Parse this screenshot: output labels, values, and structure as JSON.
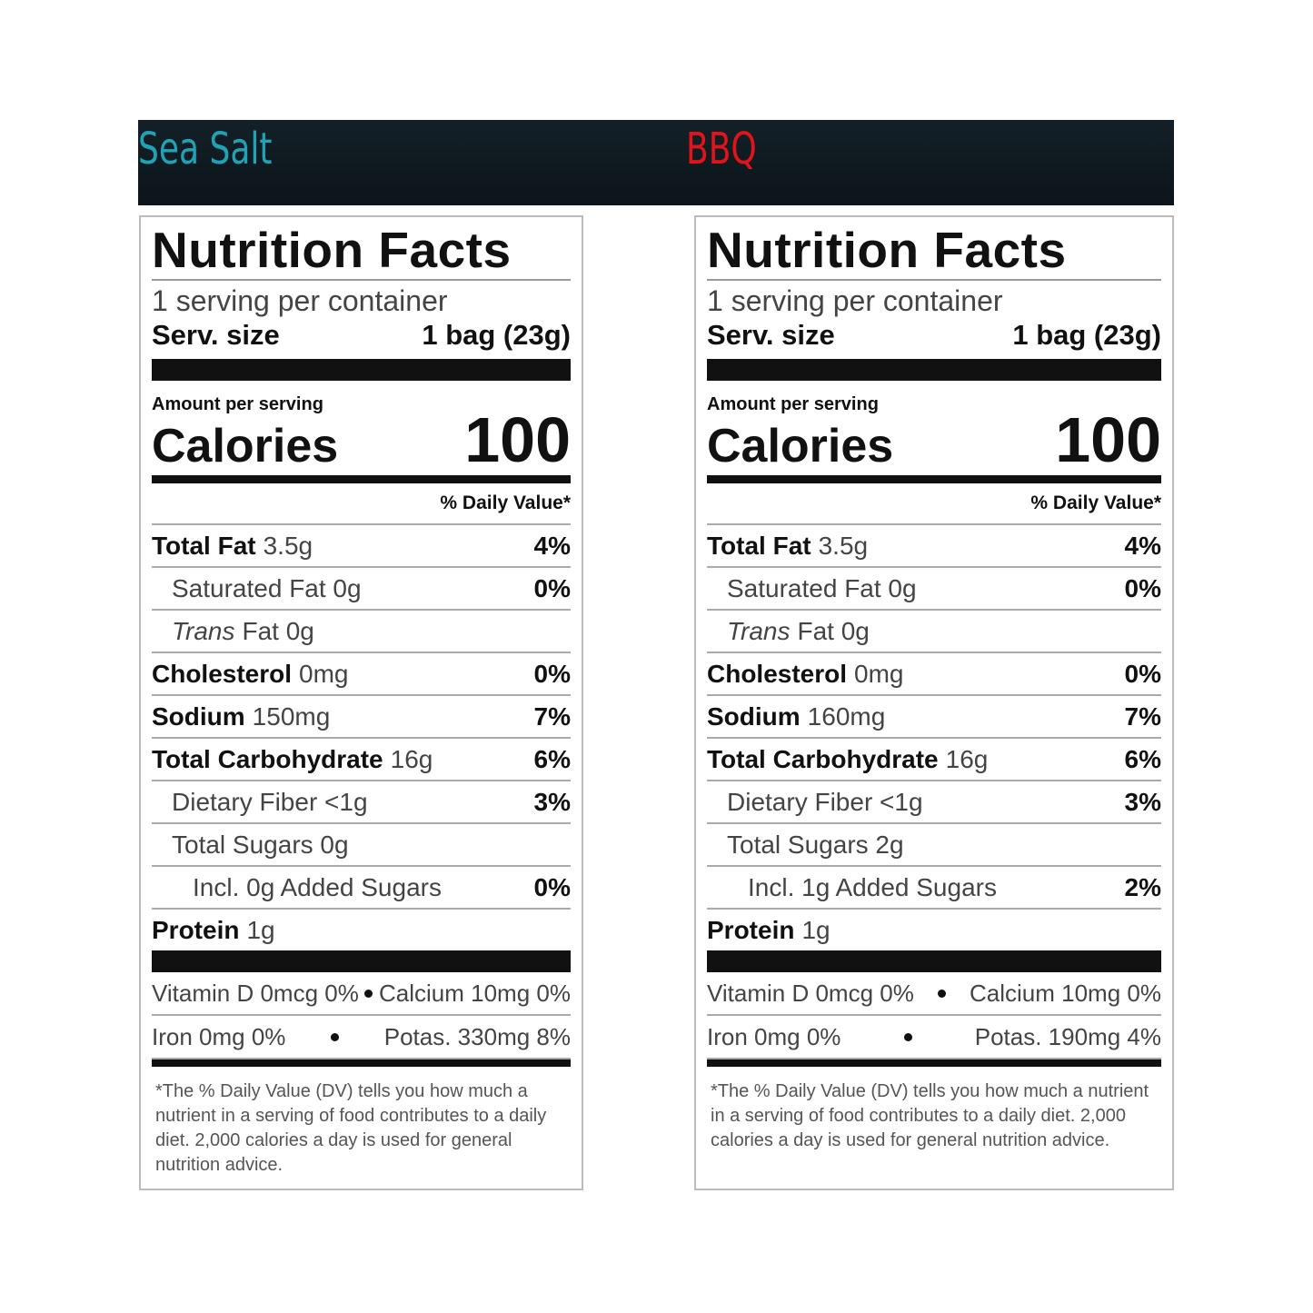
{
  "banner": {
    "left": "Sea Salt",
    "right": "BBQ"
  },
  "labels": [
    {
      "title": "Nutrition Facts",
      "servings": "1 serving per container",
      "serv_size_label": "Serv. size",
      "serv_size": "1 bag (23g)",
      "amount_label": "Amount per serving",
      "calories_label": "Calories",
      "calories": "100",
      "dv_header": "% Daily Value*",
      "rows": [
        {
          "name": "Total Fat",
          "amount": "3.5g",
          "dv": "4%"
        },
        {
          "name": "Saturated Fat 0g",
          "dv": "0%"
        },
        {
          "name": "Trans",
          "amount": "Fat 0g"
        },
        {
          "name": "Cholesterol",
          "amount": "0mg",
          "dv": "0%"
        },
        {
          "name": "Sodium",
          "amount": "150mg",
          "dv": "7%"
        },
        {
          "name": "Total Carbohydrate",
          "amount": "16g",
          "dv": "6%"
        },
        {
          "name": "Dietary Fiber <1g",
          "dv": "3%"
        },
        {
          "name": "Total Sugars 0g"
        },
        {
          "name": "Incl. 0g Added Sugars",
          "dv": "0%"
        },
        {
          "name": "Protein",
          "amount": "1g"
        }
      ],
      "vitamins": [
        [
          "Vitamin D 0mcg 0%",
          "Calcium 10mg 0%"
        ],
        [
          "Iron 0mg 0%",
          "Potas. 330mg 8%"
        ]
      ],
      "footnote": "*The % Daily Value (DV) tells you how much a nutrient in a serving of food contributes to a daily diet. 2,000 calories a day is used for general nutrition advice."
    },
    {
      "title": "Nutrition Facts",
      "servings": "1 serving per container",
      "serv_size_label": "Serv. size",
      "serv_size": "1 bag (23g)",
      "amount_label": "Amount per serving",
      "calories_label": "Calories",
      "calories": "100",
      "dv_header": "% Daily Value*",
      "rows": [
        {
          "name": "Total Fat",
          "amount": "3.5g",
          "dv": "4%"
        },
        {
          "name": "Saturated Fat 0g",
          "dv": "0%"
        },
        {
          "name": "Trans",
          "amount": "Fat 0g"
        },
        {
          "name": "Cholesterol",
          "amount": "0mg",
          "dv": "0%"
        },
        {
          "name": "Sodium",
          "amount": "160mg",
          "dv": "7%"
        },
        {
          "name": "Total Carbohydrate",
          "amount": "16g",
          "dv": "6%"
        },
        {
          "name": "Dietary Fiber <1g",
          "dv": "3%"
        },
        {
          "name": "Total Sugars 2g"
        },
        {
          "name": "Incl. 1g Added Sugars",
          "dv": "2%"
        },
        {
          "name": "Protein",
          "amount": "1g"
        }
      ],
      "vitamins": [
        [
          "Vitamin D 0mcg 0%",
          "Calcium 10mg 0%"
        ],
        [
          "Iron 0mg 0%",
          "Potas. 190mg 4%"
        ]
      ],
      "footnote": "*The % Daily Value (DV) tells you how much a nutrient in a serving of food contributes to a daily diet. 2,000 calories a day is used for general nutrition advice."
    }
  ]
}
